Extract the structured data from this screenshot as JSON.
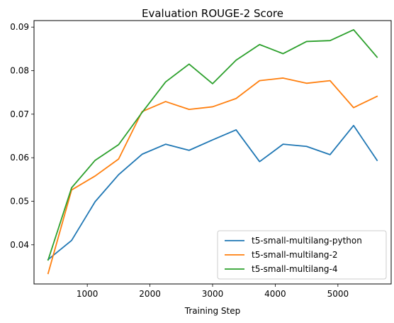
{
  "chart_data": {
    "type": "line",
    "title": "Evaluation ROUGE-2 Score",
    "xlabel": "Training Step",
    "ylabel": "",
    "x": [
      375,
      750,
      1125,
      1500,
      1875,
      2250,
      2625,
      3000,
      3375,
      3750,
      4125,
      4500,
      4875,
      5250,
      5625
    ],
    "xlim": [
      150,
      5850
    ],
    "ylim": [
      0.031,
      0.0915
    ],
    "xticks": [
      1000,
      2000,
      3000,
      4000,
      5000
    ],
    "xtick_labels": [
      "1000",
      "2000",
      "3000",
      "4000",
      "5000"
    ],
    "yticks": [
      0.04,
      0.05,
      0.06,
      0.07,
      0.08,
      0.09
    ],
    "ytick_labels": [
      "0.04",
      "0.05",
      "0.06",
      "0.07",
      "0.08",
      "0.09"
    ],
    "grid": false,
    "legend_position": "lower-right",
    "series": [
      {
        "name": "t5-small-multilang-python",
        "color": "#1f77b4",
        "values": [
          0.0366,
          0.041,
          0.0499,
          0.0561,
          0.0608,
          0.0631,
          0.0617,
          0.0641,
          0.0664,
          0.0591,
          0.0631,
          0.0626,
          0.0607,
          0.0674,
          0.0594
        ]
      },
      {
        "name": "t5-small-multilang-2",
        "color": "#ff7f0e",
        "values": [
          0.0334,
          0.0526,
          0.0558,
          0.0597,
          0.0706,
          0.0729,
          0.0711,
          0.0717,
          0.0736,
          0.0777,
          0.0783,
          0.0771,
          0.0777,
          0.0715,
          0.0741
        ]
      },
      {
        "name": "t5-small-multilang-4",
        "color": "#2ca02c",
        "values": [
          0.0365,
          0.0531,
          0.0594,
          0.063,
          0.0704,
          0.0774,
          0.0815,
          0.077,
          0.0824,
          0.086,
          0.0839,
          0.0867,
          0.0869,
          0.0894,
          0.0831
        ]
      }
    ]
  }
}
